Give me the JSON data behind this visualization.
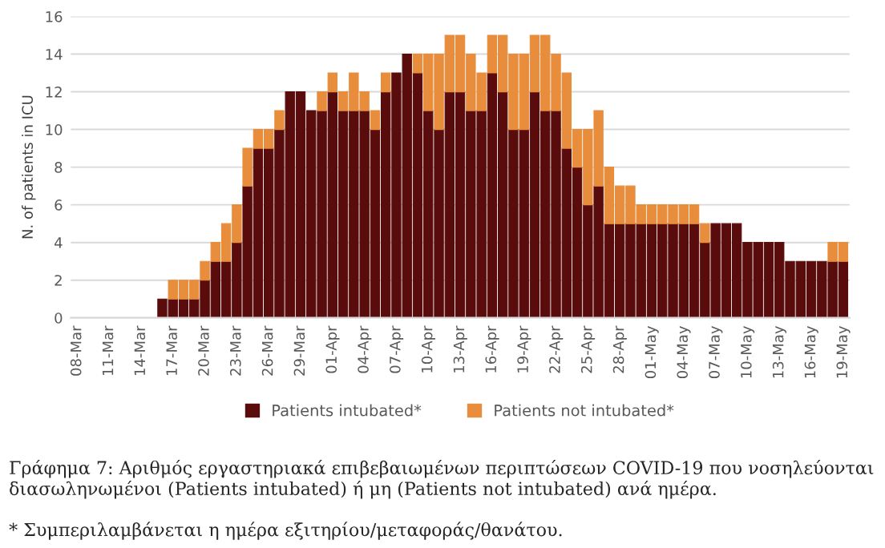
{
  "chart_data": {
    "type": "bar",
    "stacked": true,
    "ylabel": "N. of patients in ICU",
    "categories": [
      "08-Mar",
      null,
      null,
      "11-Mar",
      null,
      null,
      "14-Mar",
      null,
      null,
      "17-Mar",
      null,
      null,
      "20-Mar",
      null,
      null,
      "23-Mar",
      null,
      null,
      "26-Mar",
      null,
      null,
      "29-Mar",
      null,
      null,
      "01-Apr",
      null,
      null,
      "04-Apr",
      null,
      null,
      "07-Apr",
      null,
      null,
      "10-Apr",
      null,
      null,
      "13-Apr",
      null,
      null,
      "16-Apr",
      null,
      null,
      "19-Apr",
      null,
      null,
      "22-Apr",
      null,
      null,
      "25-Apr",
      null,
      null,
      "28-Apr",
      null,
      null,
      "01-May",
      null,
      null,
      "04-May",
      null,
      null,
      "07-May",
      null,
      null,
      "10-May",
      null,
      null,
      "13-May",
      null,
      null,
      "16-May",
      null,
      null,
      "19-May"
    ],
    "series": [
      {
        "name": "Patients intubated*",
        "color": "#5a0c0c",
        "values": [
          0,
          0,
          0,
          0,
          0,
          0,
          0,
          0,
          1,
          1,
          1,
          1,
          2,
          3,
          3,
          4,
          7,
          9,
          9,
          10,
          12,
          12,
          11,
          11,
          12,
          11,
          11,
          11,
          10,
          12,
          13,
          14,
          13,
          11,
          10,
          12,
          12,
          11,
          11,
          13,
          12,
          10,
          10,
          12,
          11,
          11,
          9,
          8,
          6,
          7,
          5,
          5,
          5,
          5,
          5,
          5,
          5,
          5,
          5,
          4,
          5,
          5,
          5,
          4,
          4,
          4,
          4,
          3,
          3,
          3,
          3,
          3,
          3
        ]
      },
      {
        "name": "Patients not intubated*",
        "color": "#e88d3c",
        "values": [
          0,
          0,
          0,
          0,
          0,
          0,
          0,
          0,
          0,
          1,
          1,
          1,
          1,
          1,
          2,
          2,
          2,
          1,
          1,
          1,
          0,
          0,
          0,
          1,
          1,
          1,
          2,
          1,
          1,
          1,
          0,
          0,
          1,
          3,
          4,
          3,
          3,
          3,
          2,
          2,
          3,
          4,
          4,
          3,
          4,
          3,
          4,
          2,
          4,
          4,
          3,
          2,
          2,
          1,
          1,
          1,
          1,
          1,
          1,
          1,
          0,
          0,
          0,
          0,
          0,
          0,
          0,
          0,
          0,
          0,
          0,
          1,
          1
        ]
      }
    ],
    "ylim": [
      0,
      16
    ],
    "yticks": [
      0,
      2,
      4,
      6,
      8,
      10,
      12,
      14,
      16
    ],
    "grid": "y",
    "legend": "bottom",
    "annotations": [
      "Γράφημα 7: Αριθμός εργαστηριακά επιβεβαιωμένων περιπτώσεων COVID-19 που νοσηλεύονται διασωληνωμένοι (Patients intubated) ή μη (Patients not intubated) ανά ημέρα.",
      "* Συμπεριλαμβάνεται η ημέρα εξιτηρίου/μεταφοράς/θανάτου."
    ]
  }
}
